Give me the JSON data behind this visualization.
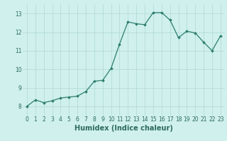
{
  "x": [
    0,
    1,
    2,
    3,
    4,
    5,
    6,
    7,
    8,
    9,
    10,
    11,
    12,
    13,
    14,
    15,
    16,
    17,
    18,
    19,
    20,
    21,
    22,
    23
  ],
  "y": [
    8.0,
    8.35,
    8.2,
    8.3,
    8.45,
    8.5,
    8.55,
    8.8,
    9.35,
    9.4,
    10.05,
    11.35,
    12.55,
    12.45,
    12.4,
    13.05,
    13.05,
    12.65,
    11.7,
    12.05,
    11.95,
    11.45,
    11.0,
    11.8
  ],
  "line_color": "#2d7d6e",
  "marker": "D",
  "markersize": 1.8,
  "linewidth": 0.9,
  "bg_color": "#cff0ec",
  "grid_color": "#b0d8d2",
  "xlabel": "Humidex (Indice chaleur)",
  "xlabel_fontsize": 7,
  "yticks": [
    8,
    9,
    10,
    11,
    12,
    13
  ],
  "xticks": [
    0,
    1,
    2,
    3,
    4,
    5,
    6,
    7,
    8,
    9,
    10,
    11,
    12,
    13,
    14,
    15,
    16,
    17,
    18,
    19,
    20,
    21,
    22,
    23
  ],
  "ylim": [
    7.5,
    13.5
  ],
  "xlim": [
    -0.5,
    23.5
  ],
  "tick_fontsize": 5.5,
  "tick_color": "#2d6b5e"
}
